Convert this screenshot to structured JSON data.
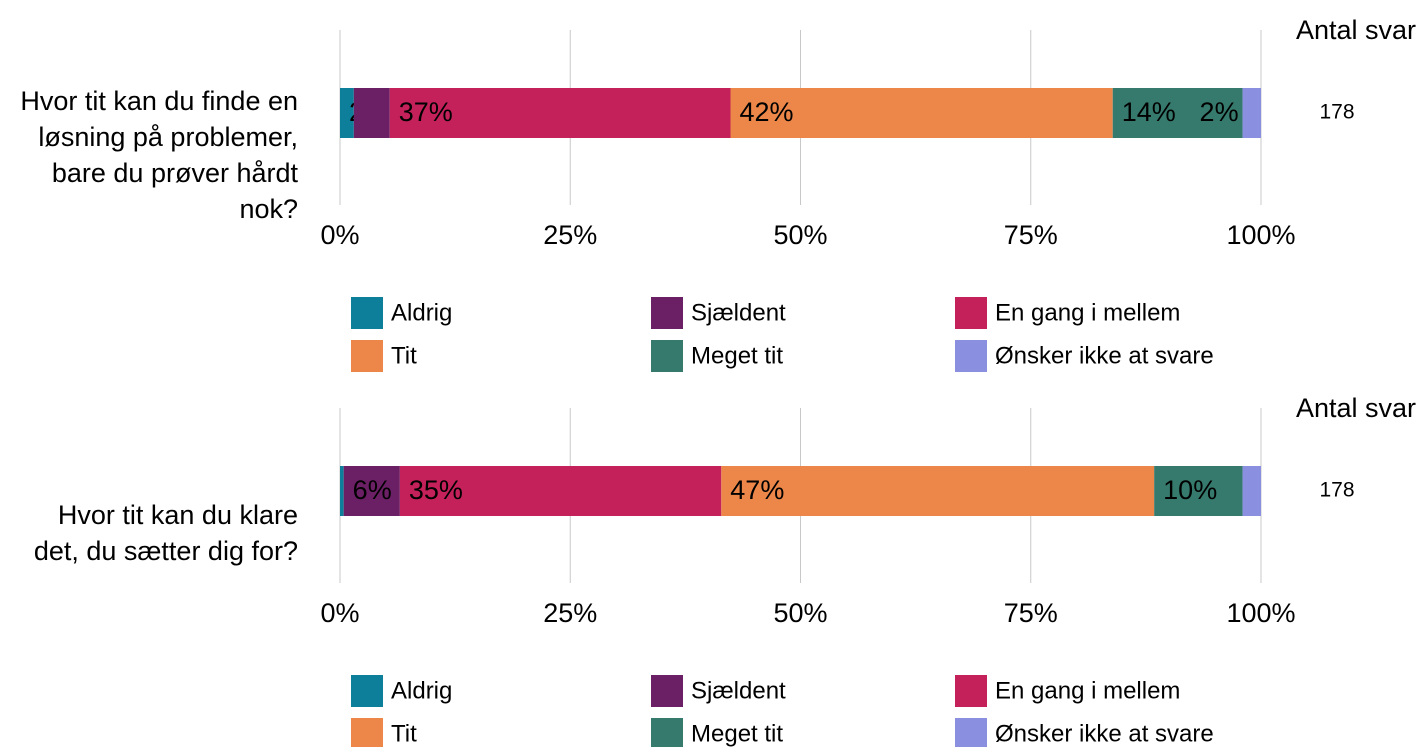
{
  "chart_data": [
    {
      "type": "stacked_bar_100",
      "categories": [
        "Hvor tit kan du finde en løsning på problemer, bare du prøver hårdt nok?"
      ],
      "series": [
        {
          "name": "Aldrig",
          "color": "#0e7f9a",
          "values": [
            1.5
          ],
          "value_labels": [
            "2%"
          ]
        },
        {
          "name": "Sjældent",
          "color": "#6b2065",
          "values": [
            3.9
          ],
          "value_labels": [
            null
          ]
        },
        {
          "name": "En gang i mellem",
          "color": "#c4215a",
          "values": [
            37
          ],
          "value_labels": [
            "37%"
          ]
        },
        {
          "name": "Tit",
          "color": "#ec8749",
          "values": [
            41.5
          ],
          "value_labels": [
            "42%"
          ]
        },
        {
          "name": "Meget tit",
          "color": "#367a6d",
          "values": [
            14.1
          ],
          "value_labels": [
            "14%"
          ]
        },
        {
          "name": "Ønsker ikke at svare",
          "color": "#8b8fe0",
          "values": [
            2
          ],
          "value_labels": [
            "2%"
          ]
        }
      ],
      "xlim": [
        0,
        100
      ],
      "xticks": [
        {
          "value": 0,
          "label": "0%"
        },
        {
          "value": 25,
          "label": "25%"
        },
        {
          "value": 50,
          "label": "50%"
        },
        {
          "value": 75,
          "label": "75%"
        },
        {
          "value": 100,
          "label": "100%"
        }
      ],
      "grid": true,
      "count_label": "Antal svar",
      "counts": [
        178
      ]
    },
    {
      "type": "stacked_bar_100",
      "categories": [
        "Hvor tit kan du klare det, du sætter dig for?"
      ],
      "series": [
        {
          "name": "Aldrig",
          "color": "#0e7f9a",
          "values": [
            0.4
          ],
          "value_labels": [
            null
          ]
        },
        {
          "name": "Sjældent",
          "color": "#6b2065",
          "values": [
            6.1
          ],
          "value_labels": [
            "6%"
          ]
        },
        {
          "name": "En gang i mellem",
          "color": "#c4215a",
          "values": [
            34.9
          ],
          "value_labels": [
            "35%"
          ]
        },
        {
          "name": "Tit",
          "color": "#ec8749",
          "values": [
            47
          ],
          "value_labels": [
            "47%"
          ]
        },
        {
          "name": "Meget tit",
          "color": "#367a6d",
          "values": [
            9.6
          ],
          "value_labels": [
            "10%"
          ]
        },
        {
          "name": "Ønsker ikke at svare",
          "color": "#8b8fe0",
          "values": [
            2
          ],
          "value_labels": [
            null
          ]
        }
      ],
      "xlim": [
        0,
        100
      ],
      "xticks": [
        {
          "value": 0,
          "label": "0%"
        },
        {
          "value": 25,
          "label": "25%"
        },
        {
          "value": 50,
          "label": "50%"
        },
        {
          "value": 75,
          "label": "75%"
        },
        {
          "value": 100,
          "label": "100%"
        }
      ],
      "grid": true,
      "count_label": "Antal svar",
      "counts": [
        178
      ]
    }
  ]
}
